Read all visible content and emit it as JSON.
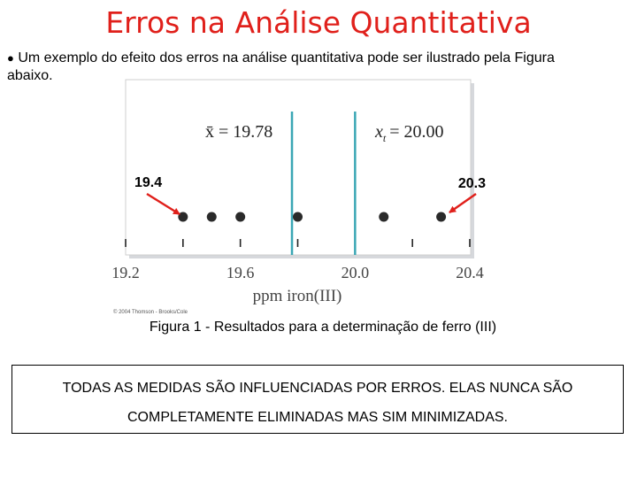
{
  "slide": {
    "title": "Erros na Análise Quantitativa",
    "bullet_line1": "Um exemplo do efeito dos erros na análise quantitativa pode ser ilustrado pela Figura",
    "bullet_line2": "abaixo.",
    "caption": "Figura 1 - Resultados para a determinação de ferro (III)",
    "note_line1": "TODAS AS MEDIDAS SÃO INFLUENCIADAS POR ERROS. ELAS NUNCA SÃO",
    "note_line2": "COMPLETAMENTE ELIMINADAS MAS SIM MINIMIZADAS."
  },
  "figure": {
    "mean_label": "x̄ = 19.78",
    "true_label_symbol": "x",
    "true_label_subscript": "t",
    "true_label_value": "= 20.00",
    "left_annotation": "19.4",
    "right_annotation": "20.3",
    "xlabel": "ppm iron(III)",
    "copyright": "© 2004 Thomson - Brooks/Cole",
    "accent_color": "#3ba7b5",
    "arrow_color": "#e0201b"
  },
  "chart_data": {
    "type": "scatter",
    "x_values": [
      19.4,
      19.5,
      19.6,
      19.8,
      20.1,
      20.3
    ],
    "mean": 19.78,
    "true_value": 20.0,
    "xlim": [
      19.2,
      20.4
    ],
    "xticks": [
      "19.2",
      "19.6",
      "20.0",
      "20.4"
    ],
    "xlabel": "ppm iron(III)"
  }
}
